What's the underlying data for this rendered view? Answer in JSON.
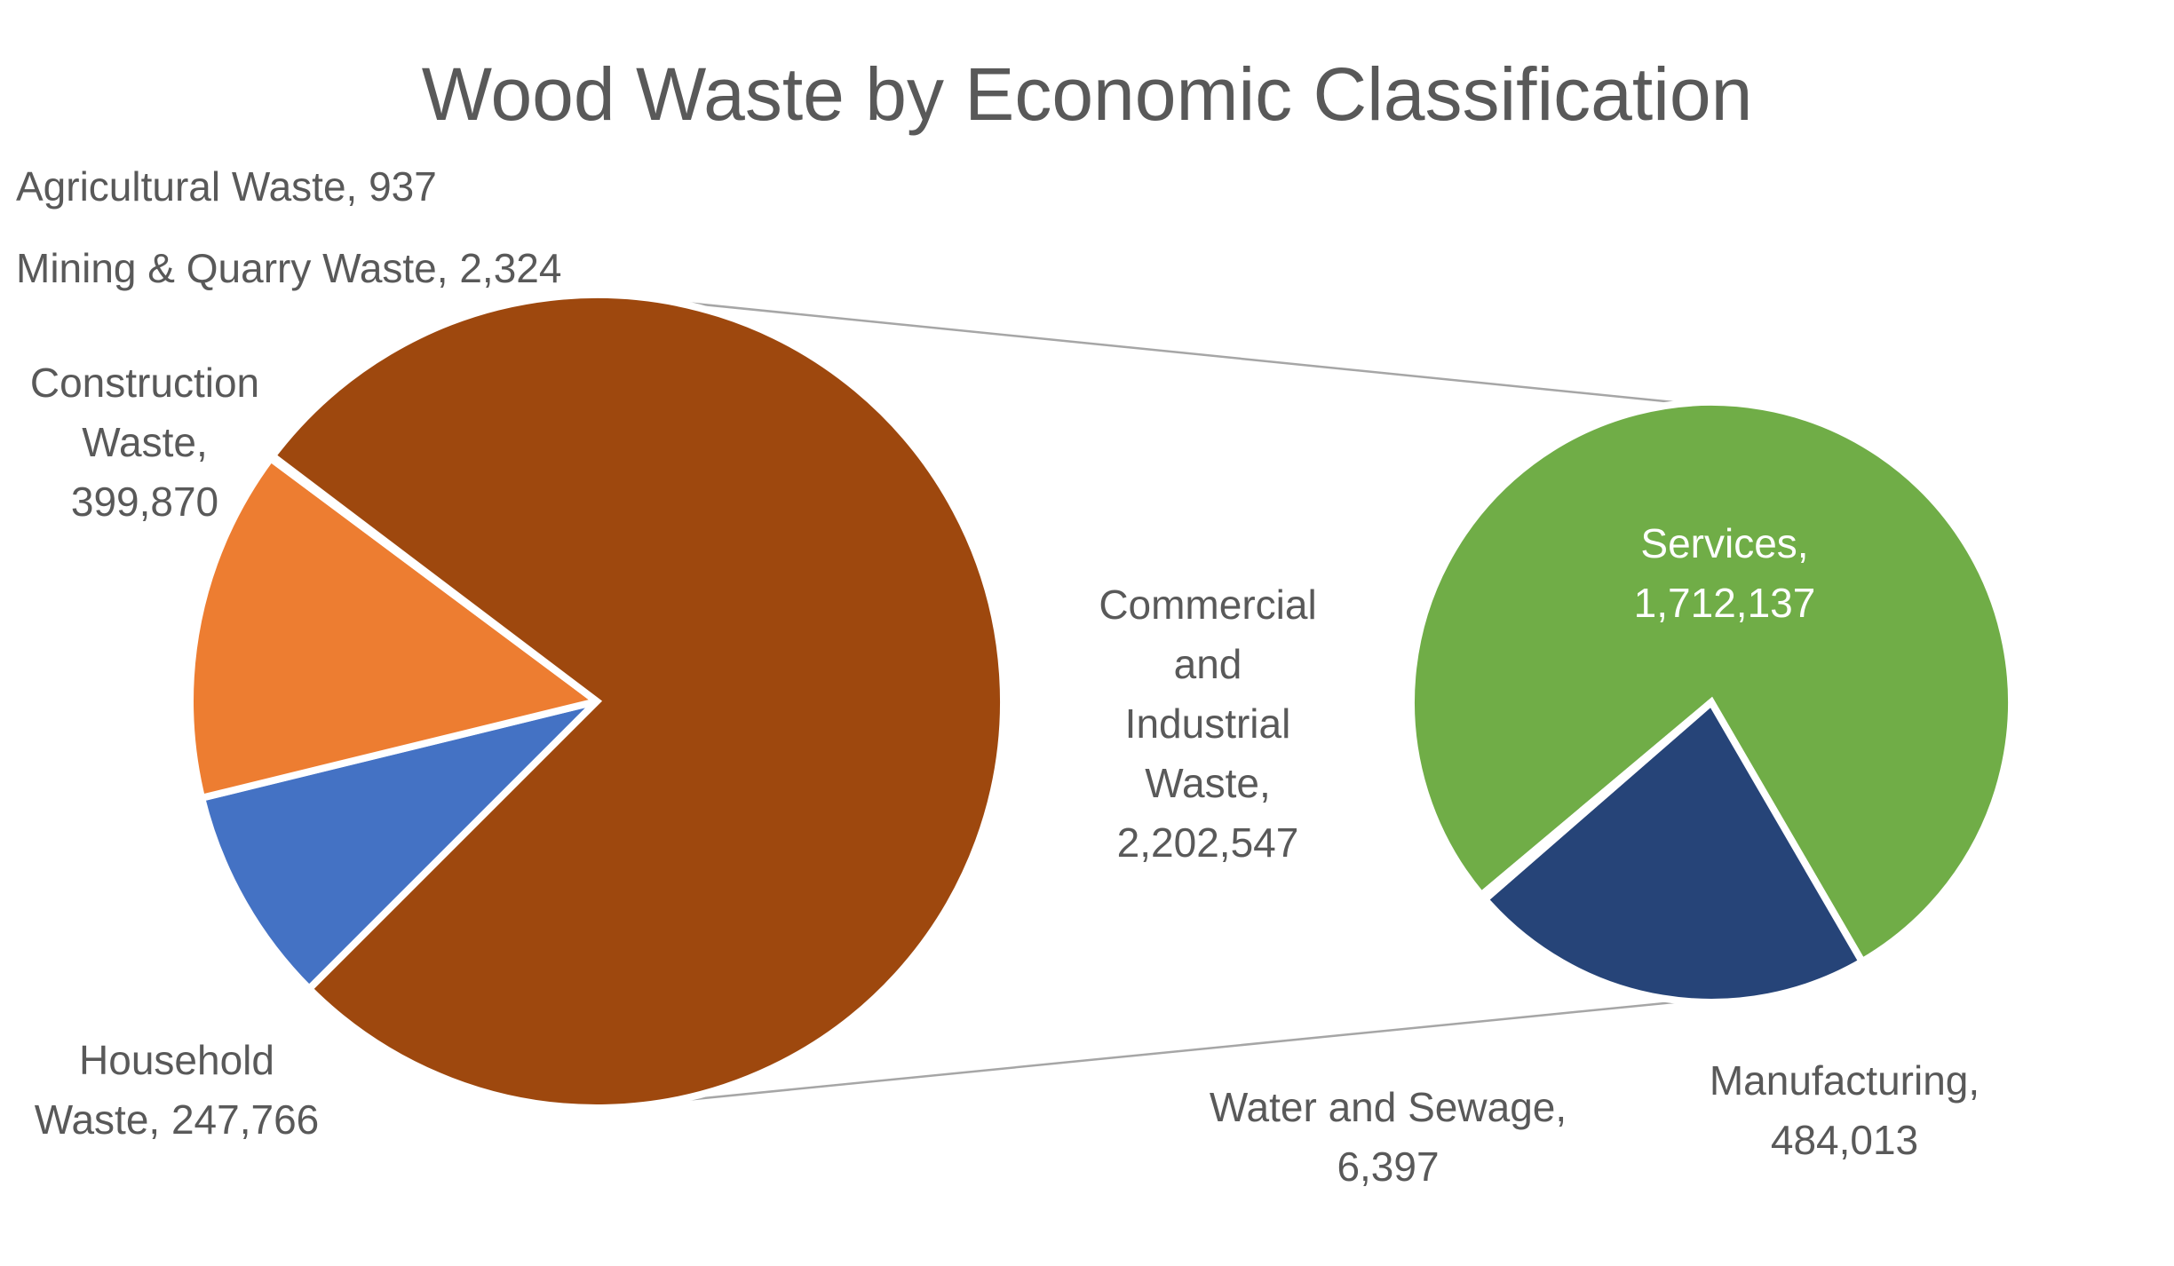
{
  "chart_data": {
    "type": "pie",
    "subtype": "pie-of-pie",
    "title": "Wood Waste by Economic Classification",
    "main_pie": [
      {
        "name": "Agricultural Waste",
        "value": 937,
        "label": "Agricultural Waste, 937",
        "color": "#4472C4"
      },
      {
        "name": "Mining & Quarry Waste",
        "value": 2324,
        "label": "Mining & Quarry Waste, 2,324",
        "color": "#A5A5A5"
      },
      {
        "name": "Construction Waste",
        "value": 399870,
        "label": "Construction Waste, 399,870",
        "color": "#ED7D31"
      },
      {
        "name": "Household Waste",
        "value": 247766,
        "label": "Household Waste, 247,766",
        "color": "#4472C4"
      },
      {
        "name": "Commercial and Industrial Waste",
        "value": 2202547,
        "label": "Commercial and Industrial Waste, 2,202,547",
        "color": "#9E480E"
      }
    ],
    "secondary_pie": [
      {
        "name": "Services",
        "value": 1712137,
        "label": "Services, 1,712,137",
        "color": "#70AD47"
      },
      {
        "name": "Water and Sewage",
        "value": 6397,
        "label": "Water and Sewage, 6,397",
        "color": "#264478"
      },
      {
        "name": "Manufacturing",
        "value": 484013,
        "label": "Manufacturing, 484,013",
        "color": "#264478"
      }
    ],
    "secondary_of": "Commercial and Industrial Waste",
    "legend": "none",
    "colors": {
      "title": "#595959",
      "label": "#595959",
      "label_inside": "#ffffff",
      "connector": "#a6a6a6",
      "slice_border": "#ffffff"
    }
  }
}
